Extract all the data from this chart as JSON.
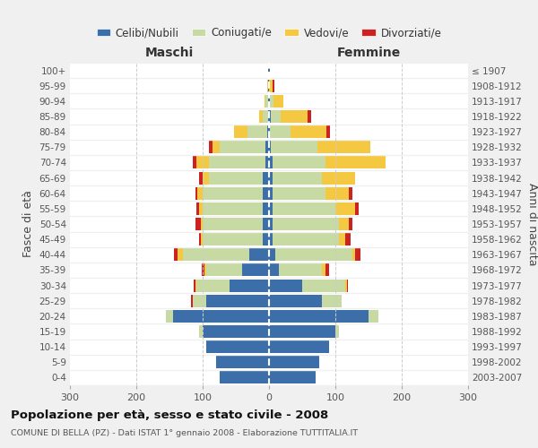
{
  "age_groups": [
    "0-4",
    "5-9",
    "10-14",
    "15-19",
    "20-24",
    "25-29",
    "30-34",
    "35-39",
    "40-44",
    "45-49",
    "50-54",
    "55-59",
    "60-64",
    "65-69",
    "70-74",
    "75-79",
    "80-84",
    "85-89",
    "90-94",
    "95-99",
    "100+"
  ],
  "birth_years": [
    "2003-2007",
    "1998-2002",
    "1993-1997",
    "1988-1992",
    "1983-1987",
    "1978-1982",
    "1973-1977",
    "1968-1972",
    "1963-1967",
    "1958-1962",
    "1953-1957",
    "1948-1952",
    "1943-1947",
    "1938-1942",
    "1933-1937",
    "1928-1932",
    "1923-1927",
    "1918-1922",
    "1913-1917",
    "1908-1912",
    "≤ 1907"
  ],
  "colors": {
    "celibi": "#3c6faa",
    "coniugati": "#c8daa4",
    "vedovi": "#f5c842",
    "divorziati": "#cc2222"
  },
  "maschi": {
    "celibi": [
      75,
      80,
      95,
      100,
      145,
      95,
      60,
      40,
      30,
      10,
      10,
      10,
      10,
      10,
      5,
      5,
      3,
      2,
      2,
      1,
      1
    ],
    "coniugati": [
      0,
      0,
      0,
      5,
      10,
      20,
      50,
      55,
      100,
      90,
      90,
      90,
      90,
      80,
      85,
      70,
      30,
      8,
      3,
      0,
      0
    ],
    "vedovi": [
      0,
      0,
      0,
      0,
      0,
      0,
      1,
      2,
      8,
      3,
      3,
      5,
      8,
      10,
      20,
      10,
      20,
      5,
      2,
      2,
      0
    ],
    "divorziati": [
      0,
      0,
      0,
      0,
      0,
      2,
      3,
      5,
      5,
      3,
      8,
      5,
      3,
      5,
      5,
      5,
      0,
      0,
      0,
      0,
      0
    ]
  },
  "femmine": {
    "celibi": [
      70,
      75,
      90,
      100,
      150,
      80,
      50,
      15,
      10,
      5,
      5,
      5,
      5,
      5,
      5,
      3,
      2,
      3,
      2,
      0,
      1
    ],
    "coniugati": [
      0,
      0,
      0,
      5,
      15,
      30,
      65,
      65,
      115,
      100,
      100,
      95,
      80,
      75,
      80,
      70,
      30,
      15,
      5,
      0,
      0
    ],
    "vedovi": [
      0,
      0,
      0,
      0,
      0,
      0,
      2,
      5,
      5,
      10,
      15,
      30,
      35,
      50,
      90,
      80,
      55,
      40,
      15,
      5,
      0
    ],
    "divorziati": [
      0,
      0,
      0,
      0,
      0,
      0,
      2,
      5,
      8,
      8,
      5,
      5,
      5,
      0,
      0,
      0,
      5,
      5,
      0,
      3,
      0
    ]
  },
  "title": "Popolazione per età, sesso e stato civile - 2008",
  "subtitle": "COMUNE DI BELLA (PZ) - Dati ISTAT 1° gennaio 2008 - Elaborazione TUTTITALIA.IT",
  "xlabel_left": "Maschi",
  "xlabel_right": "Femmine",
  "ylabel": "Fasce di età",
  "ylabel_right": "Anni di nascita",
  "xlim": 300,
  "legend_labels": [
    "Celibi/Nubili",
    "Coniugati/e",
    "Vedovi/e",
    "Divorziati/e"
  ],
  "bg_color": "#f0f0f0",
  "bar_bg_color": "#ffffff"
}
